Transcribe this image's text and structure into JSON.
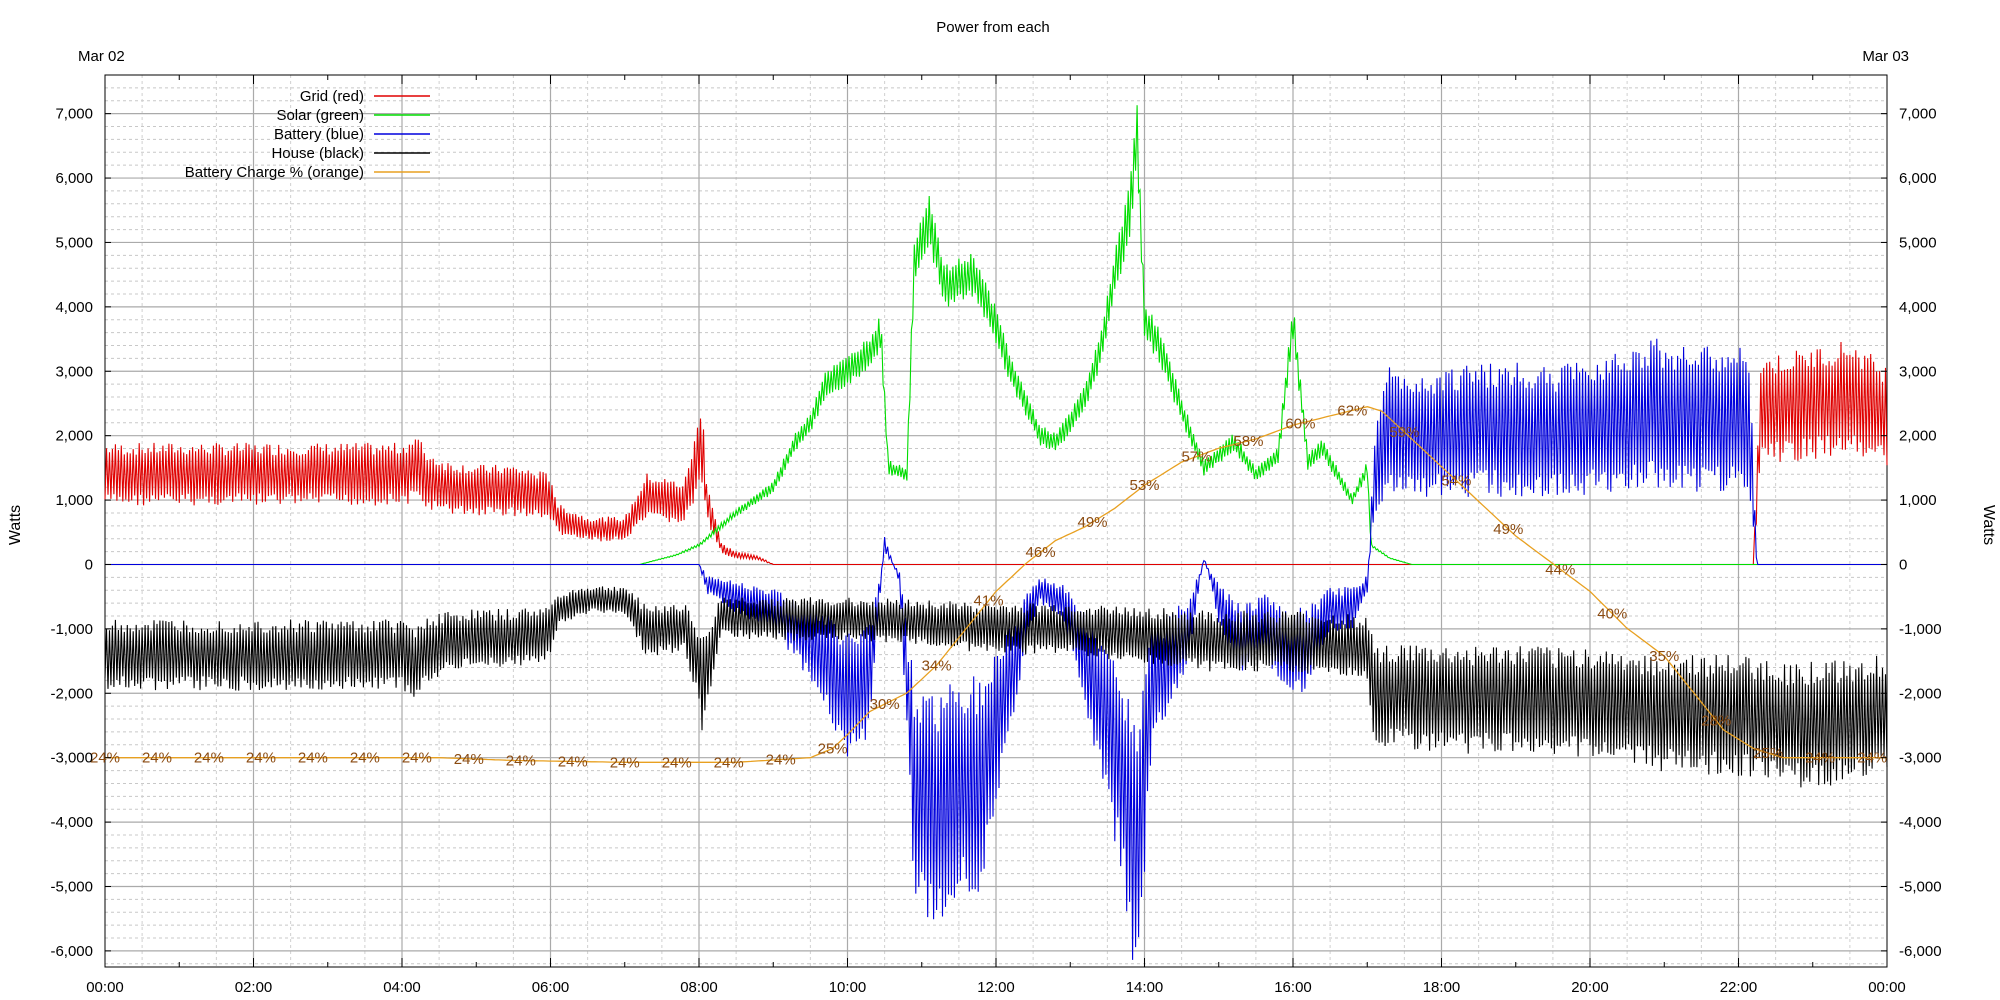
{
  "chart_data": {
    "type": "line",
    "title": "Power from each",
    "date_start": "Mar 02",
    "date_end": "Mar 03",
    "ylabel_left": "Watts",
    "ylabel_right": "Watts",
    "ylim": [
      -6250,
      7600
    ],
    "xlim": [
      0,
      24
    ],
    "y_ticks": [
      {
        "v": 7000,
        "label": "7,000"
      },
      {
        "v": 6000,
        "label": "6,000"
      },
      {
        "v": 5000,
        "label": "5,000"
      },
      {
        "v": 4000,
        "label": "4,000"
      },
      {
        "v": 3000,
        "label": "3,000"
      },
      {
        "v": 2000,
        "label": "2,000"
      },
      {
        "v": 1000,
        "label": "1,000"
      },
      {
        "v": 0,
        "label": "0"
      },
      {
        "v": -1000,
        "label": "-1,000"
      },
      {
        "v": -2000,
        "label": "-2,000"
      },
      {
        "v": -3000,
        "label": "-3,000"
      },
      {
        "v": -4000,
        "label": "-4,000"
      },
      {
        "v": -5000,
        "label": "-5,000"
      },
      {
        "v": -6000,
        "label": "-6,000"
      }
    ],
    "x_ticks": [
      {
        "v": 0,
        "label": "00:00"
      },
      {
        "v": 2,
        "label": "02:00"
      },
      {
        "v": 4,
        "label": "04:00"
      },
      {
        "v": 6,
        "label": "06:00"
      },
      {
        "v": 8,
        "label": "08:00"
      },
      {
        "v": 10,
        "label": "10:00"
      },
      {
        "v": 12,
        "label": "12:00"
      },
      {
        "v": 14,
        "label": "14:00"
      },
      {
        "v": 16,
        "label": "16:00"
      },
      {
        "v": 18,
        "label": "18:00"
      },
      {
        "v": 20,
        "label": "20:00"
      },
      {
        "v": 22,
        "label": "22:00"
      },
      {
        "v": 24,
        "label": "00:00"
      }
    ],
    "grid": true,
    "legend": "top-left",
    "series": [
      {
        "name": "Grid (red)",
        "color": "#e00000",
        "osc": 0.35,
        "points": [
          [
            0,
            1400
          ],
          [
            0.5,
            1400
          ],
          [
            1,
            1400
          ],
          [
            2,
            1400
          ],
          [
            3,
            1400
          ],
          [
            4,
            1400
          ],
          [
            4.2,
            1500
          ],
          [
            4.35,
            1300
          ],
          [
            4.6,
            1200
          ],
          [
            5,
            1150
          ],
          [
            5.5,
            1150
          ],
          [
            6,
            1050
          ],
          [
            6.1,
            700
          ],
          [
            6.5,
            550
          ],
          [
            7,
            550
          ],
          [
            7.3,
            1050
          ],
          [
            7.8,
            950
          ],
          [
            7.95,
            1500
          ],
          [
            8.05,
            1900
          ],
          [
            8.1,
            1000
          ],
          [
            8.3,
            250
          ],
          [
            8.5,
            150
          ],
          [
            8.8,
            100
          ],
          [
            9.0,
            0
          ],
          [
            10,
            0
          ],
          [
            12,
            0
          ],
          [
            14,
            0
          ],
          [
            16,
            0
          ],
          [
            18,
            0
          ],
          [
            20,
            0
          ],
          [
            22,
            0
          ],
          [
            22.2,
            0
          ],
          [
            22.3,
            2400
          ],
          [
            23,
            2500
          ],
          [
            23.5,
            2600
          ],
          [
            24,
            2300
          ]
        ]
      },
      {
        "name": "Solar (green)",
        "color": "#00dd00",
        "osc": 0.08,
        "points": [
          [
            0,
            0
          ],
          [
            7.2,
            0
          ],
          [
            7.7,
            150
          ],
          [
            8,
            300
          ],
          [
            8.5,
            800
          ],
          [
            9,
            1200
          ],
          [
            9.3,
            1900
          ],
          [
            9.5,
            2200
          ],
          [
            9.7,
            2800
          ],
          [
            10,
            3000
          ],
          [
            10.3,
            3300
          ],
          [
            10.45,
            3600
          ],
          [
            10.55,
            1500
          ],
          [
            10.8,
            1400
          ],
          [
            10.9,
            4700
          ],
          [
            11.1,
            5400
          ],
          [
            11.3,
            4300
          ],
          [
            11.7,
            4500
          ],
          [
            12,
            3700
          ],
          [
            12.2,
            3000
          ],
          [
            12.4,
            2500
          ],
          [
            12.6,
            2000
          ],
          [
            12.8,
            1900
          ],
          [
            13,
            2200
          ],
          [
            13.2,
            2600
          ],
          [
            13.4,
            3300
          ],
          [
            13.6,
            4500
          ],
          [
            13.8,
            5500
          ],
          [
            13.9,
            6700
          ],
          [
            14,
            3800
          ],
          [
            14.2,
            3400
          ],
          [
            14.5,
            2400
          ],
          [
            14.8,
            1500
          ],
          [
            15.2,
            1900
          ],
          [
            15.5,
            1400
          ],
          [
            15.8,
            1700
          ],
          [
            16,
            3800
          ],
          [
            16.2,
            1600
          ],
          [
            16.4,
            1800
          ],
          [
            16.8,
            1000
          ],
          [
            17,
            1500
          ],
          [
            17.05,
            300
          ],
          [
            17.3,
            100
          ],
          [
            17.6,
            0
          ],
          [
            24,
            0
          ]
        ]
      },
      {
        "name": "Battery (blue)",
        "color": "#0000dd",
        "osc": 0.5,
        "points": [
          [
            0,
            0
          ],
          [
            8,
            0
          ],
          [
            8.1,
            -300
          ],
          [
            8.5,
            -500
          ],
          [
            9,
            -700
          ],
          [
            9.3,
            -1000
          ],
          [
            9.6,
            -1300
          ],
          [
            10,
            -2000
          ],
          [
            10.3,
            -1800
          ],
          [
            10.5,
            300
          ],
          [
            10.7,
            -200
          ],
          [
            10.9,
            -3500
          ],
          [
            11.2,
            -3800
          ],
          [
            11.5,
            -3500
          ],
          [
            11.8,
            -3400
          ],
          [
            12,
            -2500
          ],
          [
            12.2,
            -1800
          ],
          [
            12.4,
            -800
          ],
          [
            12.6,
            -400
          ],
          [
            12.9,
            -600
          ],
          [
            13.1,
            -1200
          ],
          [
            13.4,
            -2200
          ],
          [
            13.7,
            -3200
          ],
          [
            13.9,
            -4700
          ],
          [
            14.1,
            -1800
          ],
          [
            14.3,
            -1600
          ],
          [
            14.6,
            -1000
          ],
          [
            14.8,
            100
          ],
          [
            15,
            -600
          ],
          [
            15.3,
            -1200
          ],
          [
            15.6,
            -900
          ],
          [
            15.9,
            -1400
          ],
          [
            16.2,
            -1300
          ],
          [
            16.5,
            -700
          ],
          [
            16.8,
            -700
          ],
          [
            17,
            -300
          ],
          [
            17.1,
            1400
          ],
          [
            17.3,
            2100
          ],
          [
            17.6,
            2000
          ],
          [
            18,
            2050
          ],
          [
            18.5,
            2100
          ],
          [
            19,
            2100
          ],
          [
            19.5,
            2050
          ],
          [
            20,
            2150
          ],
          [
            20.5,
            2300
          ],
          [
            21,
            2350
          ],
          [
            21.5,
            2250
          ],
          [
            22,
            2300
          ],
          [
            22.15,
            2100
          ],
          [
            22.25,
            0
          ],
          [
            24,
            0
          ]
        ]
      },
      {
        "name": "House (black)",
        "color": "#000000",
        "osc": 0.4,
        "points": [
          [
            0,
            -1400
          ],
          [
            1,
            -1400
          ],
          [
            2,
            -1400
          ],
          [
            3,
            -1400
          ],
          [
            4,
            -1400
          ],
          [
            4.2,
            -1500
          ],
          [
            4.35,
            -1300
          ],
          [
            4.6,
            -1200
          ],
          [
            5,
            -1150
          ],
          [
            5.5,
            -1150
          ],
          [
            6,
            -1050
          ],
          [
            6.1,
            -700
          ],
          [
            6.5,
            -550
          ],
          [
            7,
            -550
          ],
          [
            7.3,
            -1050
          ],
          [
            7.8,
            -950
          ],
          [
            7.95,
            -1400
          ],
          [
            8.05,
            -1900
          ],
          [
            8.3,
            -800
          ],
          [
            9,
            -850
          ],
          [
            10,
            -850
          ],
          [
            11,
            -900
          ],
          [
            12,
            -1000
          ],
          [
            13,
            -1000
          ],
          [
            14,
            -1100
          ],
          [
            15,
            -1200
          ],
          [
            16,
            -1200
          ],
          [
            17,
            -1300
          ],
          [
            17.1,
            -2000
          ],
          [
            18,
            -2100
          ],
          [
            19,
            -2100
          ],
          [
            20,
            -2150
          ],
          [
            21,
            -2300
          ],
          [
            22,
            -2350
          ],
          [
            22.5,
            -2450
          ],
          [
            23,
            -2500
          ],
          [
            24,
            -2300
          ]
        ]
      },
      {
        "name": "Battery Charge % (orange)",
        "color": "#e8a020",
        "osc": 0,
        "scale": [
          0,
          100
        ],
        "labels_every": 0.7,
        "points": [
          [
            0,
            24
          ],
          [
            4.5,
            24
          ],
          [
            5.5,
            23.7
          ],
          [
            7,
            23.5
          ],
          [
            8.5,
            23.5
          ],
          [
            9.5,
            24
          ],
          [
            9.8,
            25
          ],
          [
            10,
            26.5
          ],
          [
            10.3,
            29
          ],
          [
            10.8,
            31
          ],
          [
            11.2,
            34
          ],
          [
            11.6,
            38
          ],
          [
            12,
            42
          ],
          [
            12.4,
            45
          ],
          [
            12.8,
            47.5
          ],
          [
            13.2,
            49
          ],
          [
            13.6,
            51
          ],
          [
            14,
            53.5
          ],
          [
            14.5,
            56
          ],
          [
            15,
            57.5
          ],
          [
            15.5,
            58.5
          ],
          [
            16,
            60
          ],
          [
            16.5,
            61
          ],
          [
            17,
            62
          ],
          [
            17.2,
            61.5
          ],
          [
            17.4,
            60
          ],
          [
            17.8,
            57
          ],
          [
            18.2,
            54
          ],
          [
            18.6,
            51
          ],
          [
            19,
            48
          ],
          [
            19.5,
            45
          ],
          [
            20,
            42
          ],
          [
            20.5,
            38
          ],
          [
            21,
            35
          ],
          [
            21.4,
            31
          ],
          [
            21.8,
            27
          ],
          [
            22.2,
            25
          ],
          [
            22.6,
            24
          ],
          [
            23,
            24
          ],
          [
            24,
            24
          ]
        ]
      }
    ]
  }
}
